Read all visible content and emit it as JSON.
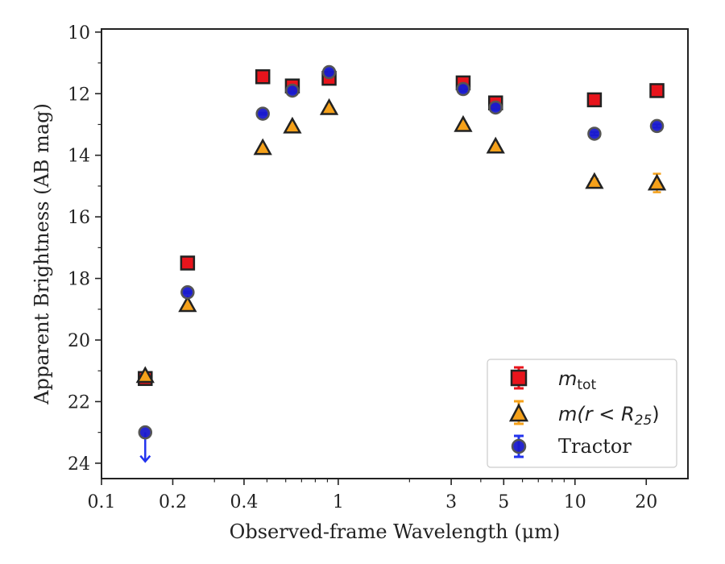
{
  "chart_data": {
    "type": "scatter",
    "xlabel": "Observed-frame Wavelength (μm)",
    "ylabel": "Apparent Brightness (AB mag)",
    "xscale": "log",
    "xlim": [
      0.1,
      30
    ],
    "ylim": [
      24.5,
      9.9
    ],
    "y_inverted": true,
    "xticks": [
      {
        "value": 0.1,
        "label": "0.1"
      },
      {
        "value": 0.2,
        "label": "0.2"
      },
      {
        "value": 0.4,
        "label": "0.4"
      },
      {
        "value": 1,
        "label": "1"
      },
      {
        "value": 3,
        "label": "3"
      },
      {
        "value": 5,
        "label": "5"
      },
      {
        "value": 10,
        "label": "10"
      },
      {
        "value": 20,
        "label": "20"
      }
    ],
    "yticks": [
      {
        "value": 10,
        "label": "10"
      },
      {
        "value": 12,
        "label": "12"
      },
      {
        "value": 14,
        "label": "14"
      },
      {
        "value": 16,
        "label": "16"
      },
      {
        "value": 18,
        "label": "18"
      },
      {
        "value": 20,
        "label": "20"
      },
      {
        "value": 22,
        "label": "22"
      },
      {
        "value": 24,
        "label": "24"
      }
    ],
    "legend_position": "lower right",
    "series": [
      {
        "name": "m_tot",
        "label_main": "m",
        "label_sub": "tot",
        "marker": "square",
        "face_color": "#e8141c",
        "edge_color": "#222222",
        "err_color": "#e8141c",
        "points": [
          {
            "x": 0.153,
            "y": 21.25,
            "err": 0.1
          },
          {
            "x": 0.231,
            "y": 17.5,
            "err": 0.05
          },
          {
            "x": 0.48,
            "y": 11.45,
            "err": 0.03
          },
          {
            "x": 0.64,
            "y": 11.75,
            "err": 0.15
          },
          {
            "x": 0.915,
            "y": 11.5,
            "err": 0.15
          },
          {
            "x": 3.37,
            "y": 11.65,
            "err": 0.12
          },
          {
            "x": 4.62,
            "y": 12.3,
            "err": 0.12
          },
          {
            "x": 12.08,
            "y": 12.2,
            "err": 0.05
          },
          {
            "x": 22.19,
            "y": 11.9,
            "err": 0.05
          }
        ]
      },
      {
        "name": "m(r < R25)",
        "label_text": "m(r < R",
        "label_sub": "25",
        "marker": "triangle",
        "face_color": "#f5a11a",
        "edge_color": "#222222",
        "err_color": "#f5a11a",
        "points": [
          {
            "x": 0.153,
            "y": 21.15,
            "err": 0.05
          },
          {
            "x": 0.231,
            "y": 18.85,
            "err": 0.05
          },
          {
            "x": 0.48,
            "y": 13.75,
            "err": 0.03
          },
          {
            "x": 0.64,
            "y": 13.05,
            "err": 0.05
          },
          {
            "x": 0.915,
            "y": 12.45,
            "err": 0.05
          },
          {
            "x": 3.37,
            "y": 13.0,
            "err": 0.05
          },
          {
            "x": 4.62,
            "y": 13.7,
            "err": 0.05
          },
          {
            "x": 12.08,
            "y": 14.85,
            "err": 0.08
          },
          {
            "x": 22.19,
            "y": 14.9,
            "err": 0.3
          }
        ]
      },
      {
        "name": "Tractor",
        "marker": "circle",
        "face_color": "#1a1acc",
        "edge_color": "#555555",
        "err_color": "#2233ee",
        "points": [
          {
            "x": 0.153,
            "y": 23.0,
            "err": 0.0,
            "upper_limit": true
          },
          {
            "x": 0.231,
            "y": 18.45,
            "err": 0.03
          },
          {
            "x": 0.48,
            "y": 12.65,
            "err": 0.03
          },
          {
            "x": 0.64,
            "y": 11.9,
            "err": 0.08
          },
          {
            "x": 0.915,
            "y": 11.3,
            "err": 0.08
          },
          {
            "x": 3.37,
            "y": 11.85,
            "err": 0.08
          },
          {
            "x": 4.62,
            "y": 12.45,
            "err": 0.08
          },
          {
            "x": 12.08,
            "y": 13.3,
            "err": 0.05
          },
          {
            "x": 22.19,
            "y": 13.05,
            "err": 0.05
          }
        ]
      }
    ]
  }
}
